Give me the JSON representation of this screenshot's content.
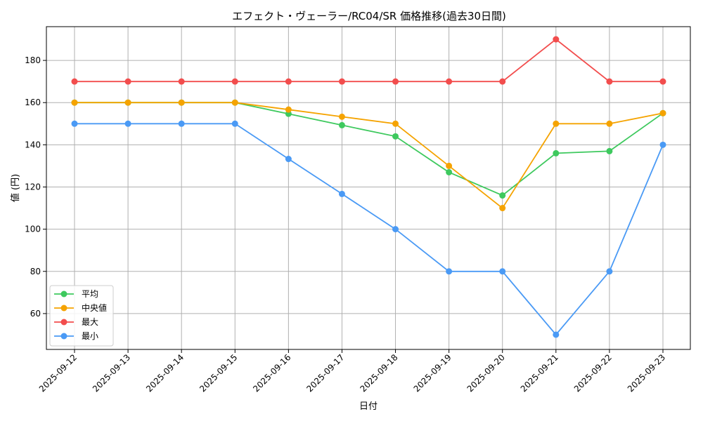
{
  "chart_data": {
    "type": "line",
    "title": "エフェクト・ヴェーラー/RC04/SR 価格推移(過去30日間)",
    "xlabel": "日付",
    "ylabel": "値 (円)",
    "categories": [
      "2025-09-12",
      "2025-09-13",
      "2025-09-14",
      "2025-09-15",
      "2025-09-16",
      "2025-09-17",
      "2025-09-18",
      "2025-09-19",
      "2025-09-20",
      "2025-09-21",
      "2025-09-22",
      "2025-09-23"
    ],
    "ylim": [
      43,
      196
    ],
    "yticks": [
      60,
      80,
      100,
      120,
      140,
      160,
      180
    ],
    "grid": true,
    "legend_position": "lower-left",
    "series": [
      {
        "name": "平均",
        "color": "#3ec95e",
        "values": [
          160,
          160,
          160,
          160,
          154.7,
          149.3,
          144,
          127,
          116,
          136,
          137,
          155
        ]
      },
      {
        "name": "中央値",
        "color": "#f5a300",
        "values": [
          160,
          160,
          160,
          160,
          156.7,
          153.3,
          150,
          130,
          110,
          150,
          150,
          155
        ]
      },
      {
        "name": "最大",
        "color": "#f24d4d",
        "values": [
          170,
          170,
          170,
          170,
          170,
          170,
          170,
          170,
          170,
          190,
          170,
          170
        ]
      },
      {
        "name": "最小",
        "color": "#4a9af5",
        "values": [
          150,
          150,
          150,
          150,
          133.3,
          116.7,
          100,
          80,
          80,
          50,
          80,
          140
        ]
      }
    ]
  }
}
